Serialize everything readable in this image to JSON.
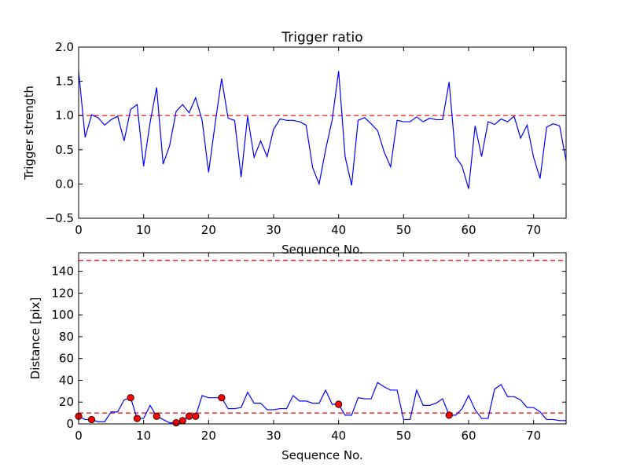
{
  "chart_data": [
    {
      "type": "line",
      "title": "Trigger ratio",
      "xlabel": "Sequence No.",
      "ylabel": "Trigger strength",
      "xlim": [
        0,
        75
      ],
      "ylim": [
        -0.5,
        2.0
      ],
      "xticks": [
        0,
        10,
        20,
        30,
        40,
        50,
        60,
        70
      ],
      "xtick_labels": [
        "0",
        "10",
        "20",
        "30",
        "40",
        "50",
        "60",
        "70"
      ],
      "yticks": [
        -0.5,
        0.0,
        0.5,
        1.0,
        1.5,
        2.0
      ],
      "ytick_labels": [
        "−0.5",
        "0.0",
        "0.5",
        "1.0",
        "1.5",
        "2.0"
      ],
      "reference_lines": [
        {
          "y": 1.0,
          "style": "dashed",
          "color": "#ff0000"
        }
      ],
      "series": [
        {
          "name": "trigger strength",
          "color": "#0000ff",
          "x": [
            0,
            1,
            2,
            3,
            4,
            5,
            6,
            7,
            8,
            9,
            10,
            11,
            12,
            13,
            14,
            15,
            16,
            17,
            18,
            19,
            20,
            21,
            22,
            23,
            24,
            25,
            26,
            27,
            28,
            29,
            30,
            31,
            32,
            33,
            34,
            35,
            36,
            37,
            38,
            39,
            40,
            41,
            42,
            43,
            44,
            45,
            46,
            47,
            48,
            49,
            50,
            51,
            52,
            53,
            54,
            55,
            56,
            57,
            58,
            59,
            60,
            61,
            62,
            63,
            64,
            65,
            66,
            67,
            68,
            69,
            70,
            71,
            72,
            73,
            74,
            75
          ],
          "values": [
            1.65,
            0.68,
            1.01,
            0.97,
            0.86,
            0.94,
            0.99,
            0.63,
            1.09,
            1.16,
            0.26,
            0.9,
            1.41,
            0.29,
            0.56,
            1.06,
            1.16,
            1.04,
            1.26,
            0.93,
            0.17,
            0.88,
            1.54,
            0.96,
            0.93,
            0.1,
            0.99,
            0.39,
            0.63,
            0.4,
            0.8,
            0.95,
            0.93,
            0.93,
            0.91,
            0.86,
            0.24,
            0.0,
            0.5,
            0.93,
            1.65,
            0.4,
            -0.02,
            0.93,
            0.97,
            0.88,
            0.78,
            0.47,
            0.25,
            0.93,
            0.91,
            0.91,
            0.98,
            0.91,
            0.96,
            0.94,
            0.94,
            1.49,
            0.4,
            0.26,
            -0.07,
            0.85,
            0.4,
            0.91,
            0.87,
            0.95,
            0.91,
            0.99,
            0.67,
            0.86,
            0.39,
            0.08,
            0.83,
            0.88,
            0.85,
            0.34
          ]
        }
      ]
    },
    {
      "type": "line",
      "title": "",
      "xlabel": "Sequence No.",
      "ylabel": "Distance [pix]",
      "xlim": [
        0,
        75
      ],
      "ylim": [
        0,
        157
      ],
      "xticks": [
        0,
        10,
        20,
        30,
        40,
        50,
        60,
        70
      ],
      "xtick_labels": [
        "0",
        "10",
        "20",
        "30",
        "40",
        "50",
        "60",
        "70"
      ],
      "yticks": [
        0,
        20,
        40,
        60,
        80,
        100,
        120,
        140
      ],
      "ytick_labels": [
        "0",
        "20",
        "40",
        "60",
        "80",
        "100",
        "120",
        "140"
      ],
      "reference_lines": [
        {
          "y": 150,
          "style": "dashed",
          "color": "#ff0000"
        },
        {
          "y": 10,
          "style": "dashed",
          "color": "#ff0000"
        }
      ],
      "series": [
        {
          "name": "distance",
          "color": "#0000ff",
          "x": [
            0,
            1,
            2,
            3,
            4,
            5,
            6,
            7,
            8,
            9,
            10,
            11,
            12,
            13,
            14,
            15,
            16,
            17,
            18,
            19,
            20,
            21,
            22,
            23,
            24,
            25,
            26,
            27,
            28,
            29,
            30,
            31,
            32,
            33,
            34,
            35,
            36,
            37,
            38,
            39,
            40,
            41,
            42,
            43,
            44,
            45,
            46,
            47,
            48,
            49,
            50,
            51,
            52,
            53,
            54,
            55,
            56,
            57,
            58,
            59,
            60,
            61,
            62,
            63,
            64,
            65,
            66,
            67,
            68,
            69,
            70,
            71,
            72,
            73,
            74,
            75
          ],
          "values": [
            7,
            4,
            4,
            2,
            2,
            11,
            11,
            22,
            24,
            5,
            5,
            17,
            7,
            4,
            1,
            1,
            3,
            7,
            7,
            26,
            24,
            24,
            24,
            14,
            14,
            15,
            29,
            19,
            19,
            13,
            13,
            14,
            14,
            26,
            21,
            21,
            19,
            19,
            31,
            18,
            18,
            8,
            8,
            24,
            23,
            23,
            38,
            34,
            31,
            31,
            4,
            4,
            31,
            17,
            17,
            19,
            23,
            8,
            8,
            14,
            26,
            13,
            5,
            5,
            32,
            36,
            25,
            25,
            22,
            15,
            15,
            11,
            4,
            4,
            3,
            3
          ]
        },
        {
          "name": "marked points",
          "type": "scatter",
          "color": "#ff0000",
          "x": [
            0,
            2,
            8,
            9,
            12,
            15,
            16,
            17,
            18,
            22,
            40,
            57
          ],
          "values": [
            7,
            4,
            24,
            5,
            7,
            1,
            3,
            7,
            7,
            24,
            18,
            8
          ]
        }
      ]
    }
  ]
}
